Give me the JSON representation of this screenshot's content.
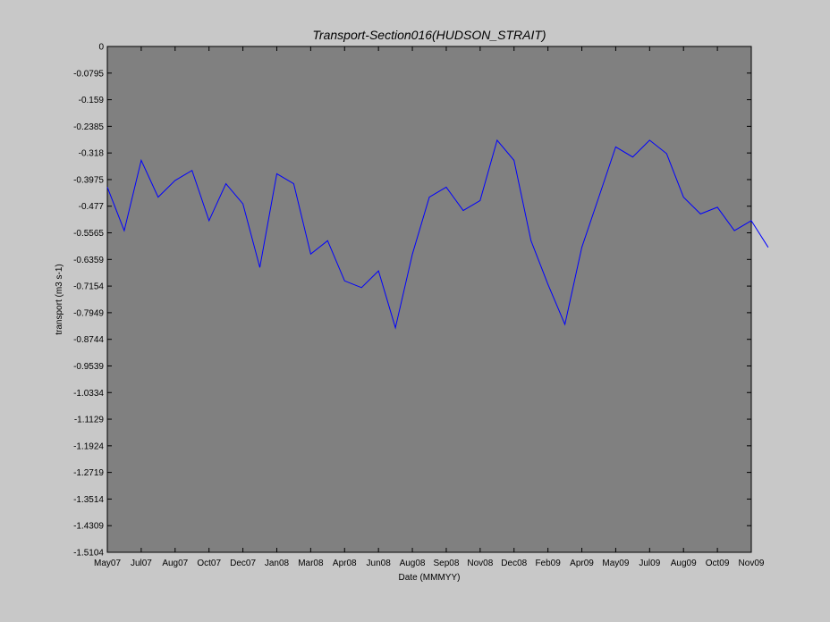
{
  "chart_data": {
    "type": "line",
    "title": "Transport-Section016(HUDSON_STRAIT)",
    "xlabel": "Date (MMMYY)",
    "ylabel": "transport (m3 s-1)",
    "ylim": [
      -1.5104,
      0
    ],
    "yticks": [
      "0",
      "-0.0795",
      "-0.159",
      "-0.2385",
      "-0.318",
      "-0.3975",
      "-0.477",
      "-0.5565",
      "-0.6359",
      "-0.7154",
      "-0.7949",
      "-0.8744",
      "-0.9539",
      "-1.0334",
      "-1.1129",
      "-1.1924",
      "-1.2719",
      "-1.3514",
      "-1.4309",
      "-1.5104"
    ],
    "xticks": [
      "May07",
      "Jul07",
      "Aug07",
      "Oct07",
      "Dec07",
      "Jan08",
      "Mar08",
      "Apr08",
      "Jun08",
      "Aug08",
      "Sep08",
      "Nov08",
      "Dec08",
      "Feb09",
      "Apr09",
      "May09",
      "Jul09",
      "Aug09",
      "Oct09",
      "Nov09"
    ],
    "grid": false,
    "legend": "none",
    "colors": {
      "series": "#0000ff",
      "plot_bg": "#808080",
      "page_bg": "#c8c8c8"
    },
    "series": [
      {
        "x": [
          0,
          0.5,
          1,
          1.5,
          2,
          2.5,
          3,
          3.5,
          4,
          4.5,
          5,
          5.5,
          6,
          6.5,
          7,
          7.5,
          8,
          8.5,
          9,
          9.5,
          10,
          10.5,
          11,
          11.5,
          12,
          12.5,
          13,
          13.5,
          14,
          14.5,
          15,
          15.5,
          16,
          16.5,
          17,
          17.5,
          18,
          18.5,
          19,
          19.5
        ],
        "values": [
          -0.42,
          -0.55,
          -0.34,
          -0.45,
          -0.4,
          -0.37,
          -0.52,
          -0.41,
          -0.47,
          -0.66,
          -0.38,
          -0.41,
          -0.62,
          -0.58,
          -0.7,
          -0.72,
          -0.67,
          -0.84,
          -0.62,
          -0.45,
          -0.42,
          -0.49,
          -0.46,
          -0.28,
          -0.34,
          -0.58,
          -0.71,
          -0.83,
          -0.6,
          -0.45,
          -0.3,
          -0.33,
          -0.28,
          -0.32,
          -0.45,
          -0.5,
          -0.48,
          -0.55,
          -0.52,
          -0.6
        ]
      }
    ]
  }
}
